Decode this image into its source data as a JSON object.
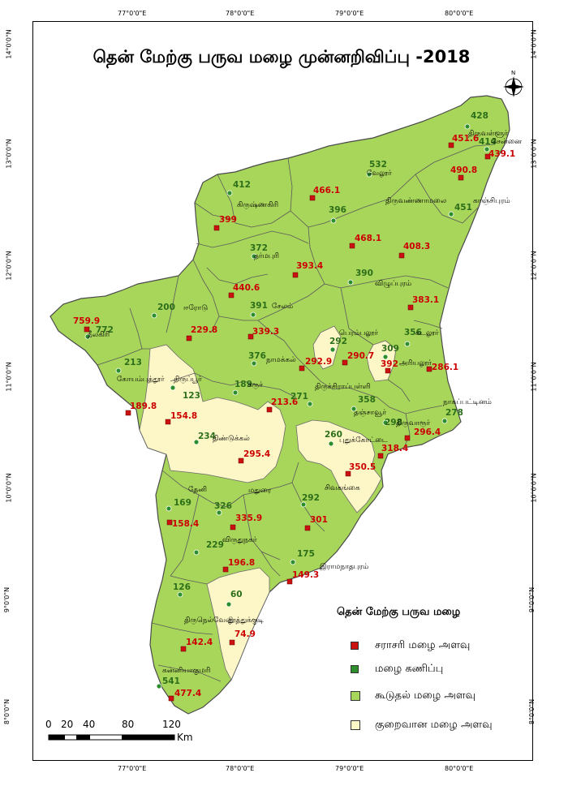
{
  "title": "தென் மேற்கு பருவ மழை முன்னறிவிப்பு -2018",
  "axes": {
    "lon_ticks": [
      "77°0'0\"E",
      "78°0'0\"E",
      "79°0'0\"E",
      "80°0'0\"E"
    ],
    "lat_ticks": [
      "14°0'0\"N",
      "13°0'0\"N",
      "12°0'0\"N",
      "11°0'0\"N",
      "10°0'0\"N",
      "9°0'0\"N",
      "8°0'0\"N"
    ]
  },
  "colors": {
    "above_normal": "#a8d65a",
    "below_normal": "#fdf7c7",
    "normal_marker": "#cc1111",
    "forecast_marker": "#2c8e2c",
    "boundary": "#555555"
  },
  "districts": [
    {
      "name": "திருவள்ளூர்",
      "normal": "451.6",
      "forecast": "428"
    },
    {
      "name": "சென்னை",
      "normal": "439.1",
      "forecast": "414"
    },
    {
      "name": "காஞ்சிபுரம்",
      "normal": "490.8",
      "forecast": "451"
    },
    {
      "name": "வேலூர்",
      "normal": "466.1",
      "forecast": "532"
    },
    {
      "name": "திருவண்ணாமலை",
      "normal": "468.1",
      "forecast": "396"
    },
    {
      "name": "கிருஷ்ணகிரி",
      "normal": "399",
      "forecast": "412"
    },
    {
      "name": "தர்மபுரி",
      "normal": "393.4",
      "forecast": "372"
    },
    {
      "name": "விழுப்புரம்",
      "normal": "408.3",
      "forecast": "390"
    },
    {
      "name": "கடலூர்",
      "normal": "383.1",
      "forecast": "356"
    },
    {
      "name": "சேலம்",
      "normal": "440.6",
      "forecast": "391"
    },
    {
      "name": "ஈரோடு",
      "normal": "229.8",
      "forecast": "200"
    },
    {
      "name": "நீலகிரி",
      "normal": "759.9",
      "forecast": "772"
    },
    {
      "name": "நாமக்கல்",
      "normal": "339.3",
      "forecast": "376"
    },
    {
      "name": "பெரம்பலூர்",
      "normal": "290.7",
      "forecast": "292"
    },
    {
      "name": "அரியலூர்",
      "normal": "392",
      "forecast": "309"
    },
    {
      "name": "கோயம்புத்தூர்",
      "normal": "189.8",
      "forecast": "213"
    },
    {
      "name": "திருப்பூர்",
      "normal": "154.8",
      "forecast": "123"
    },
    {
      "name": "கரூர்",
      "normal": "213.6",
      "forecast": "189"
    },
    {
      "name": "திருச்சிராப்பள்ளி",
      "normal": "292.9",
      "forecast": "271"
    },
    {
      "name": "தஞ்சாவூர்",
      "normal": "318.4",
      "forecast": "358"
    },
    {
      "name": "திருவாரூர்",
      "normal": "296.4",
      "forecast": "298"
    },
    {
      "name": "நாகப்பட்டினம்",
      "normal": "286.1",
      "forecast": "278"
    },
    {
      "name": "திண்டுக்கல்",
      "normal": "295.4",
      "forecast": "234"
    },
    {
      "name": "புதுக்கோட்டை",
      "normal": "350.5",
      "forecast": "260"
    },
    {
      "name": "தேனி",
      "normal": "158.4",
      "forecast": "169"
    },
    {
      "name": "மதுரை",
      "normal": "335.9",
      "forecast": "326"
    },
    {
      "name": "சிவகங்கை",
      "normal": "301",
      "forecast": "292"
    },
    {
      "name": "விருதுநகர்",
      "normal": "196.8",
      "forecast": "229"
    },
    {
      "name": "இராமநாதபுரம்",
      "normal": "149.3",
      "forecast": "175"
    },
    {
      "name": "திருநெல்வேலி",
      "normal": "142.4",
      "forecast": "126"
    },
    {
      "name": "தூத்துக்குடி",
      "normal": "74.9",
      "forecast": "60"
    },
    {
      "name": "கன்னியாகுமரி",
      "normal": "477.4",
      "forecast": "541"
    }
  ],
  "legend": {
    "title": "தென் மேற்கு பருவ மழை",
    "items": [
      {
        "label": "சராசரி மழை அளவு",
        "color": "#cc1111"
      },
      {
        "label": "மழை கணிப்பு",
        "color": "#2c8e2c"
      },
      {
        "label": "கூடுதல் மழை அளவு",
        "color": "#a8d65a"
      },
      {
        "label": "குறைவான மழை அளவு",
        "color": "#fdf7c7"
      }
    ]
  },
  "scale_bar": {
    "labels": [
      "0",
      "20",
      "40",
      "80",
      "120"
    ],
    "unit": "Km"
  },
  "north_arrow": "N"
}
